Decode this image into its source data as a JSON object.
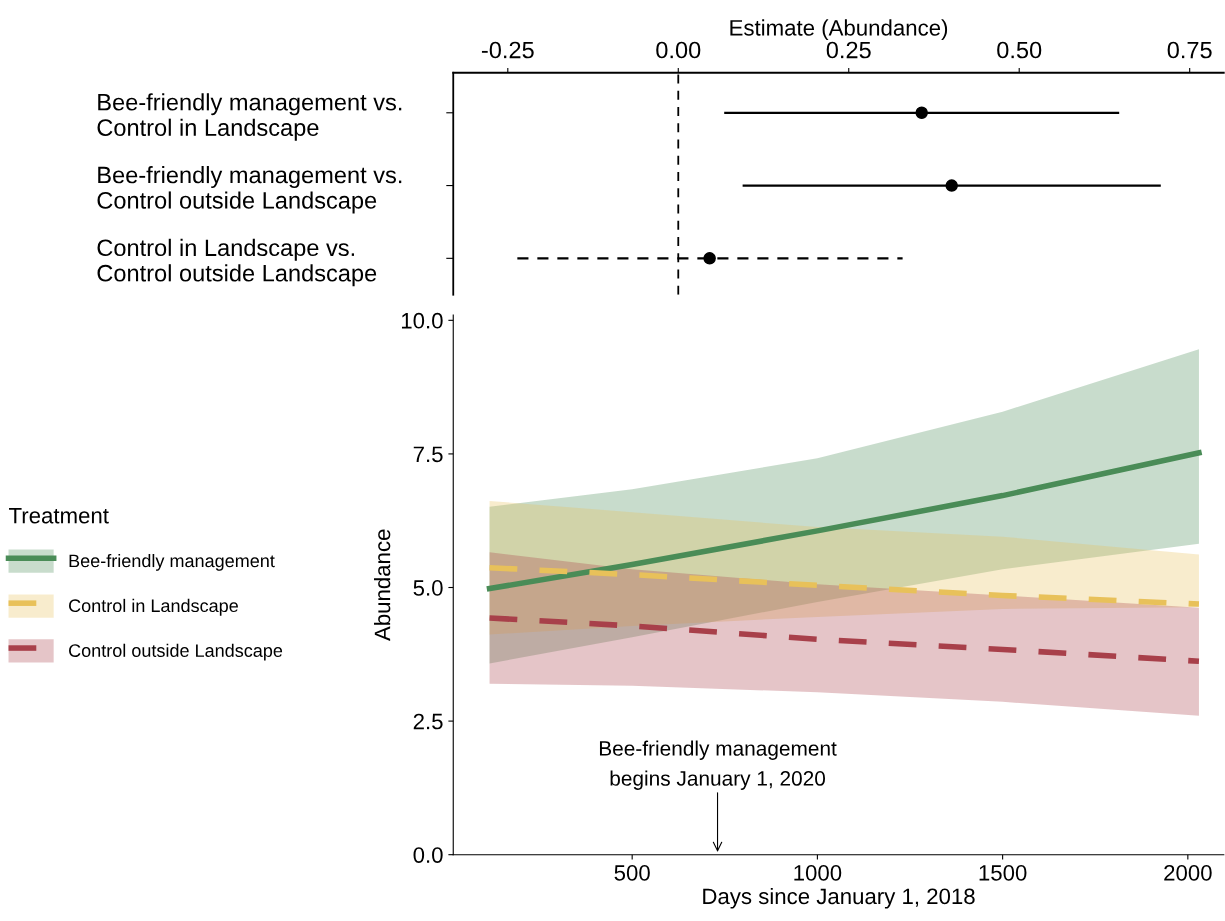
{
  "chart_data": [
    {
      "type": "scatter",
      "orientation": "horizontal",
      "xlabel": "Estimate (Abundance)",
      "categories": [
        "Bee-friendly management vs.\nControl in Landscape",
        "Bee-friendly management vs.\nControl outside Landscape",
        "Control in Landscape vs.\nControl outside Landscape"
      ],
      "series": [
        {
          "color": "#000000",
          "line_style": "solid",
          "values": [
            0.357,
            0.401,
            null
          ],
          "errors": [
            [
              0.069,
              0.645
            ],
            [
              0.096,
              0.706
            ],
            null
          ]
        },
        {
          "color": "#000000",
          "line_style": "dashed",
          "values": [
            null,
            null,
            0.046
          ],
          "errors": [
            null,
            null,
            [
              -0.236,
              0.329
            ]
          ]
        }
      ],
      "marker": "circle",
      "xlim": [
        -0.33,
        0.8
      ],
      "xticks": [
        {
          "value": -0.25,
          "label": "-0.25"
        },
        {
          "value": 0,
          "label": "0.00"
        },
        {
          "value": 0.25,
          "label": "0.25"
        },
        {
          "value": 0.5,
          "label": "0.50"
        },
        {
          "value": 0.75,
          "label": "0.75"
        }
      ],
      "ref_lines": [
        {
          "axis": "x",
          "value": 0,
          "line_style": "dashed",
          "color": "#000000"
        }
      ],
      "grid": false,
      "legend": false
    },
    {
      "type": "line",
      "xlabel": "Days since January 1, 2018",
      "ylabel": "Abundance",
      "legend_title": "Treatment",
      "legend": "left",
      "series": [
        {
          "name": "Bee-friendly management",
          "color": "#4a8c57",
          "line_style": "solid",
          "x": [
            115,
            500,
            1000,
            1500,
            2030
          ],
          "values": [
            4.98,
            5.43,
            6.06,
            6.72,
            7.52
          ],
          "lower": [
            3.58,
            4.07,
            4.73,
            5.34,
            5.82
          ],
          "upper": [
            6.51,
            6.84,
            7.42,
            8.29,
            9.46
          ]
        },
        {
          "name": "Control in Landscape",
          "color": "#e8c15a",
          "line_style": "dashed",
          "x": [
            115,
            500,
            1000,
            1500,
            2030
          ],
          "values": [
            5.37,
            5.24,
            5.04,
            4.85,
            4.69
          ],
          "lower": [
            4.12,
            4.28,
            4.45,
            4.6,
            4.63
          ],
          "upper": [
            6.62,
            6.41,
            6.13,
            5.95,
            5.62
          ]
        },
        {
          "name": "Control outside Landscape",
          "color": "#a8404a",
          "line_style": "dashed",
          "x": [
            115,
            500,
            1000,
            1500,
            2030
          ],
          "values": [
            4.43,
            4.28,
            4.03,
            3.84,
            3.62
          ],
          "lower": [
            3.2,
            3.16,
            3.04,
            2.86,
            2.6
          ],
          "upper": [
            5.66,
            5.34,
            5.06,
            4.85,
            4.62
          ]
        }
      ],
      "xlim": [
        17,
        2097
      ],
      "xticks": [
        500,
        1000,
        1500,
        2000
      ],
      "ylim": [
        0,
        10.1
      ],
      "yticks": [
        {
          "value": 0,
          "label": "0.0"
        },
        {
          "value": 2.5,
          "label": "2.5"
        },
        {
          "value": 5,
          "label": "5.0"
        },
        {
          "value": 7.5,
          "label": "7.5"
        },
        {
          "value": 10,
          "label": "10.0"
        }
      ],
      "annotations": [
        "Bee-friendly management\nbegins January 1, 2020"
      ],
      "grid": false
    }
  ]
}
